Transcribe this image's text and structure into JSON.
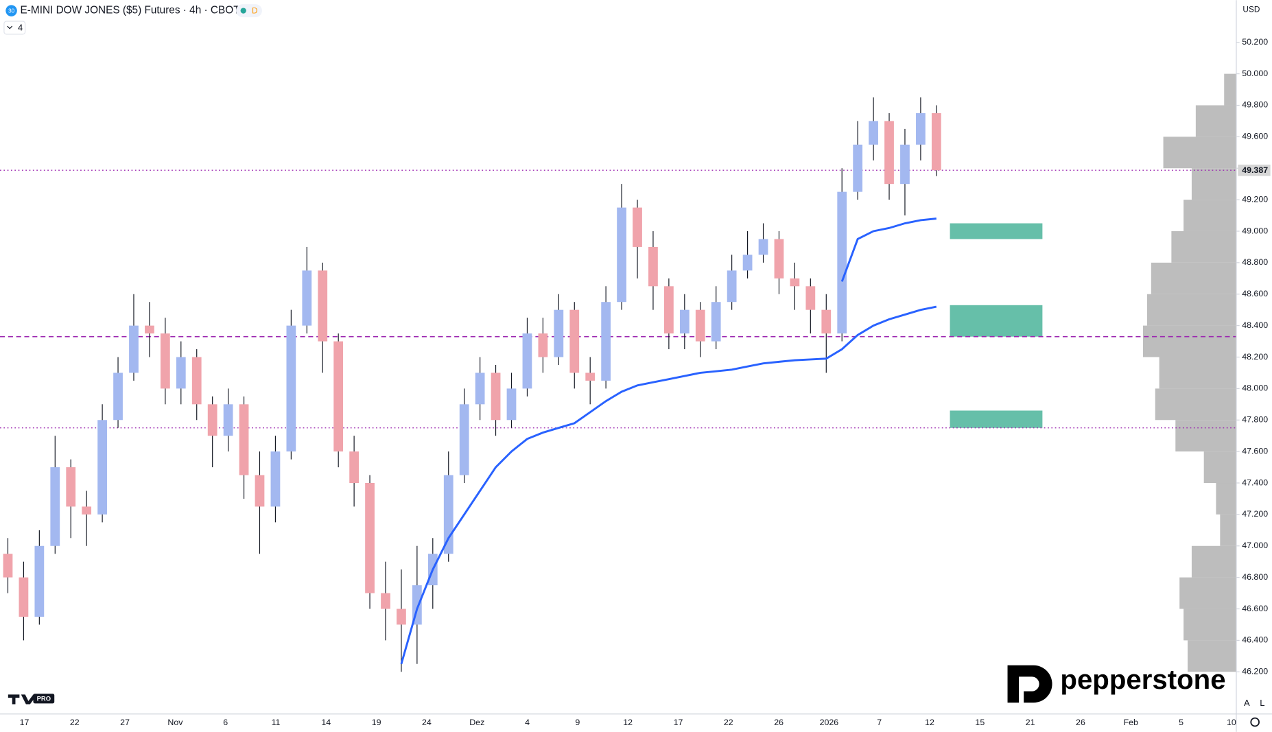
{
  "chart_data": {
    "type": "candlestick",
    "title": "E-MINI DOW JONES ($5) Futures · 4h · CBOT",
    "symbol_badge": "30",
    "session_badge": "D",
    "indicator_count": "4",
    "currency": "USD",
    "brand": "pepperstone",
    "platform_badge": "PRO",
    "scale_buttons": [
      "A",
      "L"
    ],
    "up_color": "#a3b8f0",
    "down_color": "#f0a3ab",
    "ylim": [
      45932,
      50468
    ],
    "yticks": [
      {
        "value": 46200,
        "label": "46.200"
      },
      {
        "value": 46400,
        "label": "46.400"
      },
      {
        "value": 46600,
        "label": "46.600"
      },
      {
        "value": 46800,
        "label": "46.800"
      },
      {
        "value": 47000,
        "label": "47.000"
      },
      {
        "value": 47200,
        "label": "47.200"
      },
      {
        "value": 47400,
        "label": "47.400"
      },
      {
        "value": 47600,
        "label": "47.600"
      },
      {
        "value": 47800,
        "label": "47.800"
      },
      {
        "value": 48000,
        "label": "48.000"
      },
      {
        "value": 48200,
        "label": "48.200"
      },
      {
        "value": 48400,
        "label": "48.400"
      },
      {
        "value": 48600,
        "label": "48.600"
      },
      {
        "value": 48800,
        "label": "48.800"
      },
      {
        "value": 49000,
        "label": "49.000"
      },
      {
        "value": 49200,
        "label": "49.200"
      },
      {
        "value": 49400,
        "label": "49.400"
      },
      {
        "value": 49600,
        "label": "49.600"
      },
      {
        "value": 49800,
        "label": "49.800"
      },
      {
        "value": 50000,
        "label": "50.000"
      },
      {
        "value": 50200,
        "label": "50.200"
      }
    ],
    "xtick_labels": [
      "17",
      "22",
      "27",
      "Nov",
      "6",
      "11",
      "14",
      "19",
      "24",
      "Dez",
      "4",
      "9",
      "12",
      "17",
      "22",
      "26",
      "2026",
      "7",
      "12",
      "15",
      "21",
      "26",
      "Feb",
      "5",
      "10"
    ],
    "last_price": {
      "value": 49387,
      "label": "49.387"
    },
    "candles": {
      "open": [
        46950,
        46800,
        46550,
        47000,
        47500,
        47250,
        47200,
        47800,
        48100,
        48400,
        48350,
        48000,
        48200,
        47900,
        47700,
        47900,
        47450,
        47250,
        47600,
        48400,
        48750,
        48300,
        47600,
        47400,
        46700,
        46600,
        46500,
        46750,
        46950,
        47450,
        47900,
        48100,
        47800,
        48000,
        48350,
        48200,
        48500,
        48100,
        48050,
        48550,
        49150,
        48900,
        48650,
        48350,
        48500,
        48300,
        48550,
        48750,
        48850,
        48950,
        48700,
        48650,
        48500,
        48350,
        49250,
        49550,
        49700,
        49300,
        49550,
        49750
      ],
      "high": [
        47050,
        46900,
        47100,
        47700,
        47550,
        47350,
        47900,
        48200,
        48600,
        48550,
        48450,
        48300,
        48250,
        47950,
        48000,
        47950,
        47600,
        47700,
        48500,
        48900,
        48800,
        48350,
        47700,
        47450,
        46900,
        46850,
        47000,
        47050,
        47600,
        48000,
        48200,
        48150,
        48100,
        48450,
        48450,
        48600,
        48550,
        48200,
        48650,
        49300,
        49200,
        49000,
        48700,
        48600,
        48550,
        48650,
        48850,
        49000,
        49050,
        49000,
        48800,
        48700,
        48600,
        49400,
        49700,
        49850,
        49750,
        49650,
        49850,
        49800
      ],
      "low": [
        46700,
        46400,
        46500,
        46950,
        47050,
        47000,
        47150,
        47750,
        48050,
        48200,
        47900,
        47900,
        47800,
        47500,
        47600,
        47300,
        46950,
        47150,
        47550,
        48350,
        48100,
        47500,
        47250,
        46600,
        46400,
        46200,
        46250,
        46600,
        46900,
        47400,
        47800,
        47700,
        47750,
        47950,
        48100,
        48150,
        48000,
        47900,
        48000,
        48500,
        48700,
        48500,
        48250,
        48250,
        48200,
        48250,
        48500,
        48700,
        48800,
        48600,
        48500,
        48350,
        48100,
        48300,
        49200,
        49450,
        49200,
        49100,
        49450,
        49350
      ],
      "close": [
        46800,
        46550,
        47000,
        47500,
        47250,
        47200,
        47800,
        48100,
        48400,
        48350,
        48000,
        48200,
        47900,
        47700,
        47900,
        47450,
        47250,
        47600,
        48400,
        48750,
        48300,
        47600,
        47400,
        46700,
        46600,
        46500,
        46750,
        46950,
        47450,
        47900,
        48100,
        47800,
        48000,
        48350,
        48200,
        48500,
        48100,
        48050,
        48550,
        49150,
        48900,
        48650,
        48350,
        48500,
        48300,
        48550,
        48750,
        48850,
        48950,
        48700,
        48650,
        48500,
        48350,
        49250,
        49550,
        49700,
        49300,
        49550,
        49750,
        49387
      ]
    },
    "series": [
      {
        "color": "#2962ff",
        "values": [
          null,
          null,
          null,
          null,
          null,
          null,
          null,
          null,
          null,
          null,
          null,
          null,
          null,
          null,
          null,
          null,
          null,
          null,
          null,
          null,
          null,
          null,
          null,
          null,
          null,
          46250,
          46600,
          46850,
          47050,
          47200,
          47350,
          47500,
          47600,
          47680,
          47720,
          47750,
          47780,
          47850,
          47920,
          47980,
          48020,
          48040,
          48060,
          48080,
          48100,
          48110,
          48120,
          48140,
          48160,
          48170,
          48180,
          48185,
          48190,
          48250,
          48340,
          48400,
          48440,
          48470,
          48500,
          48520
        ]
      },
      {
        "color": "#2962ff",
        "values": [
          null,
          null,
          null,
          null,
          null,
          null,
          null,
          null,
          null,
          null,
          null,
          null,
          null,
          null,
          null,
          null,
          null,
          null,
          null,
          null,
          null,
          null,
          null,
          null,
          null,
          null,
          null,
          null,
          null,
          null,
          null,
          null,
          null,
          null,
          null,
          null,
          null,
          null,
          null,
          null,
          null,
          null,
          null,
          null,
          null,
          null,
          null,
          null,
          null,
          null,
          null,
          null,
          null,
          48680,
          48950,
          49000,
          49020,
          49050,
          49070,
          49080
        ]
      }
    ],
    "levels": [
      {
        "value": 49387,
        "style": "dotted"
      },
      {
        "value": 48330,
        "style": "dashed"
      },
      {
        "value": 47750,
        "style": "dotted"
      }
    ],
    "level_color": "#9c27b0",
    "zones": [
      {
        "low": 48950,
        "high": 49050
      },
      {
        "low": 48330,
        "high": 48530
      },
      {
        "low": 47750,
        "high": 47860
      }
    ],
    "zone_color": "#66bfa9",
    "volume_profile": {
      "color": "#b2b2b2",
      "prices": [
        46300,
        46500,
        46700,
        46900,
        47100,
        47300,
        47500,
        47700,
        47900,
        48100,
        48300,
        48500,
        48700,
        48900,
        49100,
        49300,
        49500,
        49700,
        49900
      ],
      "values": [
        60,
        65,
        70,
        55,
        20,
        25,
        40,
        75,
        100,
        95,
        115,
        110,
        105,
        80,
        65,
        55,
        90,
        50,
        15
      ]
    }
  }
}
